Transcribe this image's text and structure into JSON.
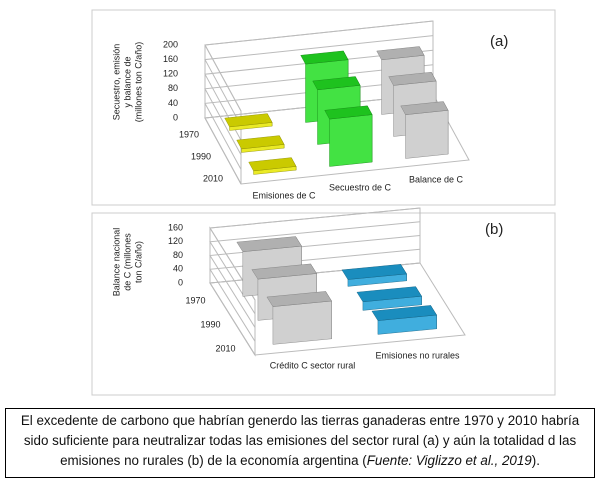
{
  "chart_data": [
    {
      "type": "bar3d",
      "label": "(a)",
      "ylabel": [
        "Secuestro, emisión",
        "y balance de",
        "(millones ton C/año)"
      ],
      "categories": [
        "Emisiones de C",
        "Secuestro de C",
        "Balance de C"
      ],
      "colors": [
        "#e6e600",
        "#22dd22",
        "#c8c8c8"
      ],
      "series": [
        {
          "name": "1970",
          "values": [
            10,
            160,
            150
          ]
        },
        {
          "name": "1990",
          "values": [
            10,
            150,
            140
          ]
        },
        {
          "name": "2010",
          "values": [
            10,
            130,
            120
          ]
        }
      ],
      "ylim": [
        0,
        200
      ],
      "yticks": [
        0,
        40,
        80,
        120,
        160,
        200
      ],
      "grid": true
    },
    {
      "type": "bar3d",
      "label": "(b)",
      "ylabel": [
        "Balance nacional",
        "de C (millones",
        "ton C/año)"
      ],
      "categories": [
        "Crédito C sector rural",
        "Emisiones no rurales"
      ],
      "colors": [
        "#c8c8c8",
        "#1ea0d8"
      ],
      "series": [
        {
          "name": "1970",
          "values": [
            130,
            20
          ]
        },
        {
          "name": "1990",
          "values": [
            120,
            25
          ]
        },
        {
          "name": "2010",
          "values": [
            110,
            40
          ]
        }
      ],
      "ylim": [
        0,
        160
      ],
      "yticks": [
        0,
        40,
        80,
        120,
        160
      ],
      "grid": true
    }
  ],
  "caption": {
    "text": "El excedente de carbono que habrían generdo las tierras ganaderas  entre 1970 y 2010 habría sido suficiente para  neutralizar  todas las emisiones del sector rural (a) y aún la totalidad d las emisiones no rurales (b) de la economía argentina (",
    "source": "Fuente: Viglizzo et al., 2019",
    "end": ")."
  }
}
